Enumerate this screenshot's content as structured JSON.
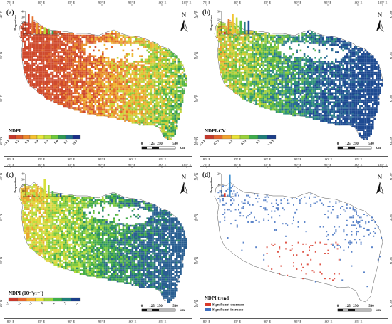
{
  "panels": [
    {
      "id": "a",
      "label": "(a)",
      "legend_title": "NDPI",
      "legend_ticks": [
        "≤ 0.1",
        "0.2",
        "0.3",
        "0.4",
        "0.5",
        "0.6",
        "0.7",
        "≥0.7"
      ],
      "legend_colors": [
        "#c8382c",
        "#de5a2c",
        "#ee8a2e",
        "#f6c230",
        "#e8e83a",
        "#b9df3e",
        "#6fca3c",
        "#2e9b53",
        "#1f6b8f",
        "#1a2f8a"
      ],
      "hist_values": [
        35,
        31,
        20,
        14,
        12,
        9,
        5
      ],
      "hist_colors": [
        "#d23a2a",
        "#e5722c",
        "#f0a62e",
        "#f2d231",
        "#bfdc39",
        "#67c23d",
        "#2d9c4f"
      ],
      "hist_ymax": 40,
      "hist_yticks": [
        "0",
        "10",
        "20",
        "30",
        "40"
      ],
      "hist_ylabel": "Proportion",
      "map_palette": [
        "#cf4a2d",
        "#e0682e",
        "#e9922f",
        "#efb733",
        "#c8d53a",
        "#8cc93d",
        "#4fb24a",
        "#2f8f60"
      ],
      "map_bias": 0.15
    },
    {
      "id": "b",
      "label": "(b)",
      "legend_title": "NDPI-CV",
      "legend_ticks": [
        "≤ 0.1",
        "0.15",
        "0.2",
        "0.25",
        "0.3",
        "≥ 0.3"
      ],
      "legend_colors": [
        "#c8382c",
        "#e4652e",
        "#f2a52f",
        "#e8e23a",
        "#9ad23c",
        "#3fae4c",
        "#1f7f7a",
        "#1b3f8a"
      ],
      "hist_values": [
        3,
        20,
        27,
        22,
        18,
        16,
        18
      ],
      "hist_colors": [
        "#d23a2a",
        "#e5832c",
        "#f2c531",
        "#c3dc39",
        "#4cb64a",
        "#2b7f86",
        "#1f4d97"
      ],
      "hist_ymax": 30,
      "hist_yticks": [
        "0",
        "10",
        "20",
        "30"
      ],
      "hist_ylabel": "Proportion",
      "map_palette": [
        "#e9a231",
        "#d8cf38",
        "#9fcf3c",
        "#5ab648",
        "#2f927a",
        "#2a6c93",
        "#1f4b92"
      ],
      "map_bias": 0.55
    },
    {
      "id": "c",
      "label": "(c)",
      "legend_title": "NDPI (10⁻³yr⁻¹)",
      "legend_ticks": [
        "-5",
        "-3",
        "-1",
        "0",
        "1",
        "3",
        "5"
      ],
      "legend_colors": [
        "#c8382c",
        "#e4652e",
        "#f2a52f",
        "#e8e23a",
        "#9ad23c",
        "#3fae4c",
        "#1f7f7a",
        "#1b3f8a"
      ],
      "hist_values": [
        2,
        3,
        8,
        18,
        30,
        20,
        10,
        5,
        6
      ],
      "hist_colors": [
        "#c8382c",
        "#e06a2c",
        "#efa02e",
        "#f2cf31",
        "#d8e03a",
        "#9ad23c",
        "#4fb24a",
        "#2b7f86",
        "#1f4d97"
      ],
      "hist_ymax": 40,
      "hist_yticks": [
        "0",
        "10",
        "20",
        "30",
        "40"
      ],
      "hist_ylabel": "Proportion",
      "map_palette": [
        "#e7a831",
        "#e3d53a",
        "#b9dc3d",
        "#7cc840",
        "#45ac4a",
        "#2c8a6a",
        "#2a5f92"
      ],
      "map_bias": 0.5
    },
    {
      "id": "d",
      "label": "(d)",
      "legend_title": "NDPI trend",
      "legend_entries": [
        {
          "label": "Significant decrease",
          "color": "#d93a2a"
        },
        {
          "label": "Significant increase",
          "color": "#3e6fbf"
        }
      ],
      "hist_values": [
        3,
        19
      ],
      "hist_colors": [
        "#d93a2a",
        "#3e8fd0"
      ],
      "hist_ymax": 20,
      "hist_yticks": [
        "0",
        "10",
        "20"
      ],
      "hist_ylabel": "Proportion"
    }
  ],
  "lon_labels": [
    "75° E",
    "80° E",
    "85° E",
    "90° E",
    "95° E",
    "100° E",
    "105° E"
  ],
  "lon_labels_bottom": [
    "80° E",
    "85° E",
    "90° E",
    "95° E",
    "100° E",
    "105° E"
  ],
  "lat_labels": [
    "40° N",
    "35° N",
    "30° N",
    "25° N"
  ],
  "north_label": "N",
  "scale_ticks": [
    "0",
    "125",
    "250",
    "500"
  ],
  "scale_unit": "km"
}
